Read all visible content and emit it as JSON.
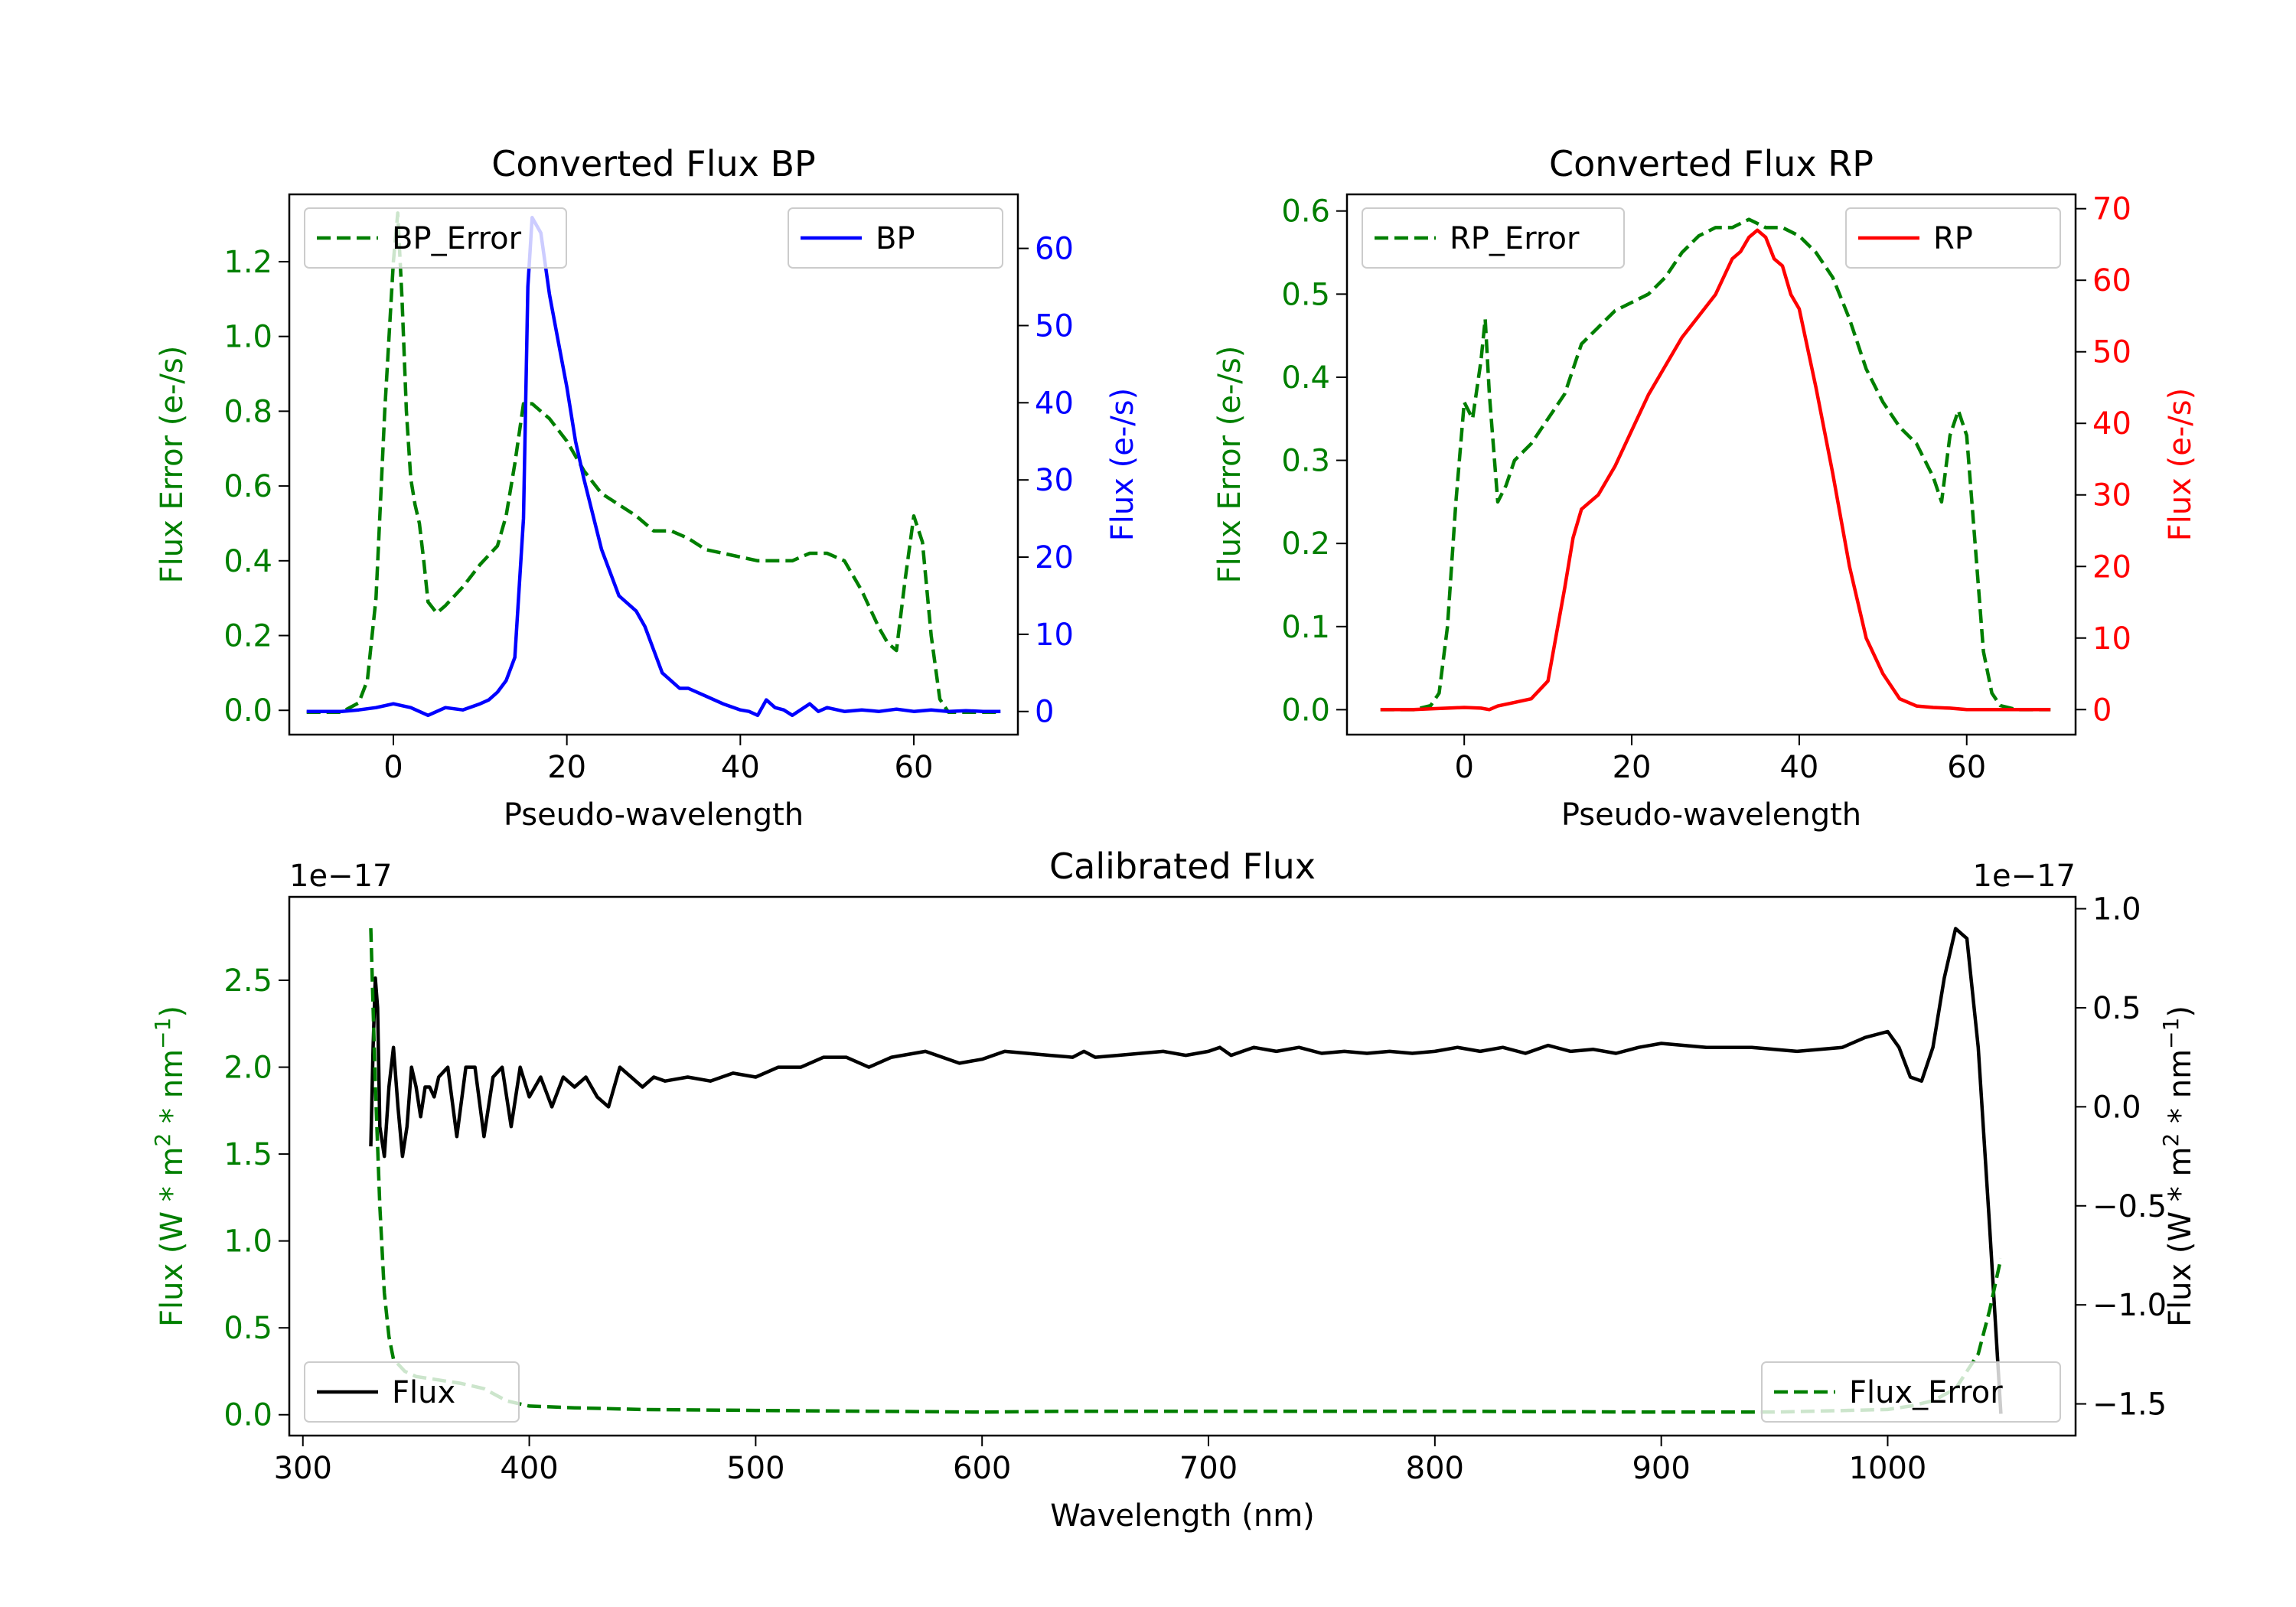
{
  "colors": {
    "green": "#007f00",
    "blue": "#0000ff",
    "red": "#ff0000",
    "black": "#000000",
    "axis": "#000000",
    "legend_border": "#cccccc"
  },
  "chart_data": [
    {
      "id": "bp",
      "type": "line",
      "title": "Converted Flux BP",
      "xlabel": "Pseudo-wavelength",
      "ylabel_left": "Flux Error (e-/s)",
      "ylabel_right": "Flux (e-/s)",
      "xlim": [
        -12,
        72
      ],
      "ylim_left": [
        -0.065,
        1.38
      ],
      "ylim_right": [
        -3,
        67
      ],
      "xticks": [
        0,
        20,
        40,
        60
      ],
      "yticks_left": [
        0.0,
        0.2,
        0.4,
        0.6,
        0.8,
        1.0,
        1.2
      ],
      "yticks_right": [
        0,
        10,
        20,
        30,
        40,
        50,
        60
      ],
      "left_tick_color": "#007f00",
      "right_tick_color": "#0000ff",
      "series": [
        {
          "name": "BP_Error",
          "axis": "left",
          "style": "dashed",
          "color": "#007f00",
          "legend_position": "top-left",
          "x": [
            -10,
            -6,
            -4,
            -3,
            -2,
            -1,
            0,
            0.5,
            1,
            1.5,
            2,
            2.5,
            3,
            3.5,
            4,
            5,
            6,
            8,
            10,
            12,
            13,
            14,
            15,
            16,
            17,
            18,
            19,
            20,
            22,
            24,
            26,
            28,
            30,
            32,
            34,
            36,
            38,
            40,
            42,
            44,
            46,
            48,
            50,
            52,
            54,
            56,
            57,
            58,
            59,
            60,
            61,
            62,
            63,
            64,
            66,
            68,
            70
          ],
          "y": [
            -0.005,
            -0.005,
            0.02,
            0.08,
            0.3,
            0.8,
            1.2,
            1.33,
            1.1,
            0.8,
            0.62,
            0.55,
            0.5,
            0.4,
            0.29,
            0.26,
            0.28,
            0.33,
            0.39,
            0.44,
            0.52,
            0.66,
            0.82,
            0.82,
            0.8,
            0.78,
            0.75,
            0.72,
            0.64,
            0.58,
            0.55,
            0.52,
            0.48,
            0.48,
            0.46,
            0.43,
            0.42,
            0.41,
            0.4,
            0.4,
            0.4,
            0.42,
            0.42,
            0.4,
            0.32,
            0.22,
            0.18,
            0.16,
            0.35,
            0.52,
            0.45,
            0.2,
            0.03,
            -0.005,
            -0.005,
            -0.005,
            -0.005
          ]
        },
        {
          "name": "BP",
          "axis": "right",
          "style": "solid",
          "color": "#0000ff",
          "legend_position": "top-right",
          "x": [
            -10,
            -6,
            -4,
            -2,
            0,
            2,
            4,
            6,
            8,
            10,
            11,
            12,
            13,
            14,
            15,
            15.5,
            16,
            17,
            18,
            19,
            20,
            21,
            22,
            24,
            26,
            28,
            29,
            30,
            31,
            32,
            33,
            34,
            36,
            38,
            40,
            41,
            42,
            43,
            44,
            45,
            46,
            48,
            49,
            50,
            52,
            54,
            56,
            58,
            60,
            62,
            64,
            66,
            68,
            70
          ],
          "y": [
            0,
            0,
            0.2,
            0.5,
            1,
            0.5,
            -0.5,
            0.5,
            0.2,
            1,
            1.5,
            2.5,
            4,
            7,
            25,
            55,
            64,
            62,
            54,
            48,
            42,
            35,
            30,
            21,
            15,
            13,
            11,
            8,
            5,
            4,
            3,
            3,
            2,
            1,
            0.2,
            0,
            -0.5,
            1.5,
            0.5,
            0.2,
            -0.5,
            1,
            0,
            0.5,
            0,
            0.2,
            0,
            0.3,
            0,
            0.2,
            0,
            0.1,
            0,
            0
          ]
        }
      ]
    },
    {
      "id": "rp",
      "type": "line",
      "title": "Converted Flux RP",
      "xlabel": "Pseudo-wavelength",
      "ylabel_left": "Flux Error (e-/s)",
      "ylabel_right": "Flux (e-/s)",
      "xlim": [
        -14,
        73
      ],
      "ylim_left": [
        -0.03,
        0.62
      ],
      "ylim_right": [
        -3.5,
        72
      ],
      "xticks": [
        0,
        20,
        40,
        60
      ],
      "yticks_left": [
        0.0,
        0.1,
        0.2,
        0.3,
        0.4,
        0.5,
        0.6
      ],
      "yticks_right": [
        0,
        10,
        20,
        30,
        40,
        50,
        60,
        70
      ],
      "left_tick_color": "#007f00",
      "right_tick_color": "#ff0000",
      "series": [
        {
          "name": "RP_Error",
          "axis": "left",
          "style": "dashed",
          "color": "#007f00",
          "legend_position": "top-left",
          "x": [
            -10,
            -6,
            -4,
            -3,
            -2,
            -1,
            0,
            1,
            2,
            2.5,
            3,
            4,
            5,
            6,
            8,
            10,
            12,
            14,
            16,
            18,
            20,
            22,
            24,
            26,
            28,
            30,
            32,
            34,
            36,
            38,
            40,
            42,
            44,
            46,
            48,
            50,
            52,
            54,
            56,
            57,
            58,
            59,
            60,
            61,
            62,
            63,
            64,
            66,
            68,
            70
          ],
          "y": [
            0,
            0,
            0.005,
            0.02,
            0.1,
            0.25,
            0.37,
            0.35,
            0.42,
            0.47,
            0.38,
            0.25,
            0.27,
            0.3,
            0.32,
            0.35,
            0.38,
            0.44,
            0.46,
            0.48,
            0.49,
            0.5,
            0.52,
            0.55,
            0.57,
            0.58,
            0.58,
            0.59,
            0.58,
            0.58,
            0.57,
            0.55,
            0.52,
            0.47,
            0.41,
            0.37,
            0.34,
            0.32,
            0.28,
            0.25,
            0.33,
            0.36,
            0.33,
            0.2,
            0.07,
            0.02,
            0.005,
            0,
            0,
            0
          ]
        },
        {
          "name": "RP",
          "axis": "right",
          "style": "solid",
          "color": "#ff0000",
          "legend_position": "top-right",
          "x": [
            -10,
            -6,
            -4,
            -2,
            0,
            2,
            3,
            4,
            6,
            8,
            10,
            12,
            13,
            14,
            15,
            16,
            18,
            20,
            22,
            24,
            26,
            28,
            30,
            32,
            33,
            34,
            35,
            36,
            37,
            38,
            39,
            40,
            42,
            44,
            46,
            48,
            50,
            52,
            54,
            56,
            58,
            60,
            62,
            64,
            66,
            68,
            70
          ],
          "y": [
            0,
            0,
            0.1,
            0.2,
            0.3,
            0.2,
            0,
            0.5,
            1,
            1.5,
            4,
            17,
            24,
            28,
            29,
            30,
            34,
            39,
            44,
            48,
            52,
            55,
            58,
            63,
            64,
            66,
            67,
            66,
            63,
            62,
            58,
            56,
            45,
            33,
            20,
            10,
            5,
            1.5,
            0.5,
            0.3,
            0.2,
            0,
            0,
            0,
            0,
            0,
            0
          ]
        }
      ]
    },
    {
      "id": "cal",
      "type": "line",
      "title": "Calibrated Flux",
      "xlabel": "Wavelength (nm)",
      "ylabel_left": "Flux (W * m",
      "ylabel_right": "Flux (W * m",
      "ylabel_sup1": "2",
      "ylabel_mid": " * nm",
      "ylabel_sup2": "−1",
      "ylabel_close": ")",
      "offset_left": "1e−17",
      "offset_right": "1e−17",
      "xlim": [
        294,
        1083
      ],
      "ylim_left": [
        -0.12,
        2.98
      ],
      "ylim_right": [
        -1.66,
        1.06
      ],
      "xticks": [
        300,
        400,
        500,
        600,
        700,
        800,
        900,
        1000
      ],
      "yticks_left": [
        0.0,
        0.5,
        1.0,
        1.5,
        2.0,
        2.5
      ],
      "yticks_left_labels": [
        "0.0",
        "0.5",
        "1.0",
        "1.5",
        "2.0",
        "2.5"
      ],
      "yticks_right": [
        -1.5,
        -1.0,
        -0.5,
        0.0,
        0.5,
        1.0
      ],
      "yticks_right_labels": [
        "−1.5",
        "−1.0",
        "−0.5",
        "0.0",
        "0.5",
        "1.0"
      ],
      "left_tick_color": "#007f00",
      "right_tick_color": "#000000",
      "series": [
        {
          "name": "Flux",
          "axis": "right",
          "style": "solid",
          "color": "#000000",
          "legend_position": "bottom-left",
          "x": [
            330,
            331,
            332,
            333,
            334,
            336,
            338,
            340,
            342,
            344,
            346,
            348,
            350,
            352,
            354,
            356,
            358,
            360,
            364,
            368,
            372,
            376,
            380,
            384,
            388,
            392,
            396,
            400,
            405,
            410,
            415,
            420,
            425,
            430,
            435,
            440,
            445,
            450,
            455,
            460,
            470,
            480,
            490,
            500,
            510,
            520,
            530,
            540,
            550,
            560,
            575,
            590,
            600,
            610,
            620,
            630,
            640,
            645,
            650,
            660,
            670,
            680,
            690,
            700,
            705,
            710,
            715,
            720,
            730,
            740,
            750,
            760,
            770,
            780,
            790,
            800,
            810,
            820,
            830,
            840,
            850,
            860,
            870,
            880,
            890,
            900,
            920,
            940,
            960,
            980,
            990,
            1000,
            1005,
            1010,
            1015,
            1020,
            1025,
            1030,
            1035,
            1040,
            1045,
            1050
          ],
          "y": [
            -0.2,
            0.3,
            0.65,
            0.5,
            -0.1,
            -0.25,
            0.1,
            0.3,
            0,
            -0.25,
            -0.1,
            0.2,
            0.1,
            -0.05,
            0.1,
            0.1,
            0.05,
            0.15,
            0.2,
            -0.15,
            0.2,
            0.2,
            -0.15,
            0.15,
            0.2,
            -0.1,
            0.2,
            0.05,
            0.15,
            0.0,
            0.15,
            0.1,
            0.15,
            0.05,
            0.0,
            0.2,
            0.15,
            0.1,
            0.15,
            0.13,
            0.15,
            0.13,
            0.17,
            0.15,
            0.2,
            0.2,
            0.25,
            0.25,
            0.2,
            0.25,
            0.28,
            0.22,
            0.24,
            0.28,
            0.27,
            0.26,
            0.25,
            0.28,
            0.25,
            0.26,
            0.27,
            0.28,
            0.26,
            0.28,
            0.3,
            0.26,
            0.28,
            0.3,
            0.28,
            0.3,
            0.27,
            0.28,
            0.27,
            0.28,
            0.27,
            0.28,
            0.3,
            0.28,
            0.3,
            0.27,
            0.31,
            0.28,
            0.29,
            0.27,
            0.3,
            0.32,
            0.3,
            0.3,
            0.28,
            0.3,
            0.35,
            0.38,
            0.3,
            0.15,
            0.13,
            0.3,
            0.65,
            0.9,
            0.85,
            0.3,
            -0.6,
            -1.55
          ]
        },
        {
          "name": "Flux_Error",
          "axis": "left",
          "style": "dashed",
          "color": "#007f00",
          "legend_position": "bottom-right",
          "x": [
            330,
            332,
            334,
            336,
            338,
            340,
            345,
            350,
            360,
            370,
            380,
            390,
            400,
            420,
            450,
            500,
            550,
            600,
            640,
            700,
            800,
            900,
            950,
            1000,
            1010,
            1020,
            1030,
            1040,
            1045,
            1050
          ],
          "y": [
            2.8,
            1.9,
            1.2,
            0.7,
            0.45,
            0.32,
            0.25,
            0.22,
            0.2,
            0.18,
            0.15,
            0.08,
            0.05,
            0.04,
            0.03,
            0.025,
            0.02,
            0.015,
            0.02,
            0.02,
            0.02,
            0.015,
            0.015,
            0.03,
            0.05,
            0.08,
            0.15,
            0.35,
            0.6,
            0.9
          ]
        }
      ]
    }
  ]
}
